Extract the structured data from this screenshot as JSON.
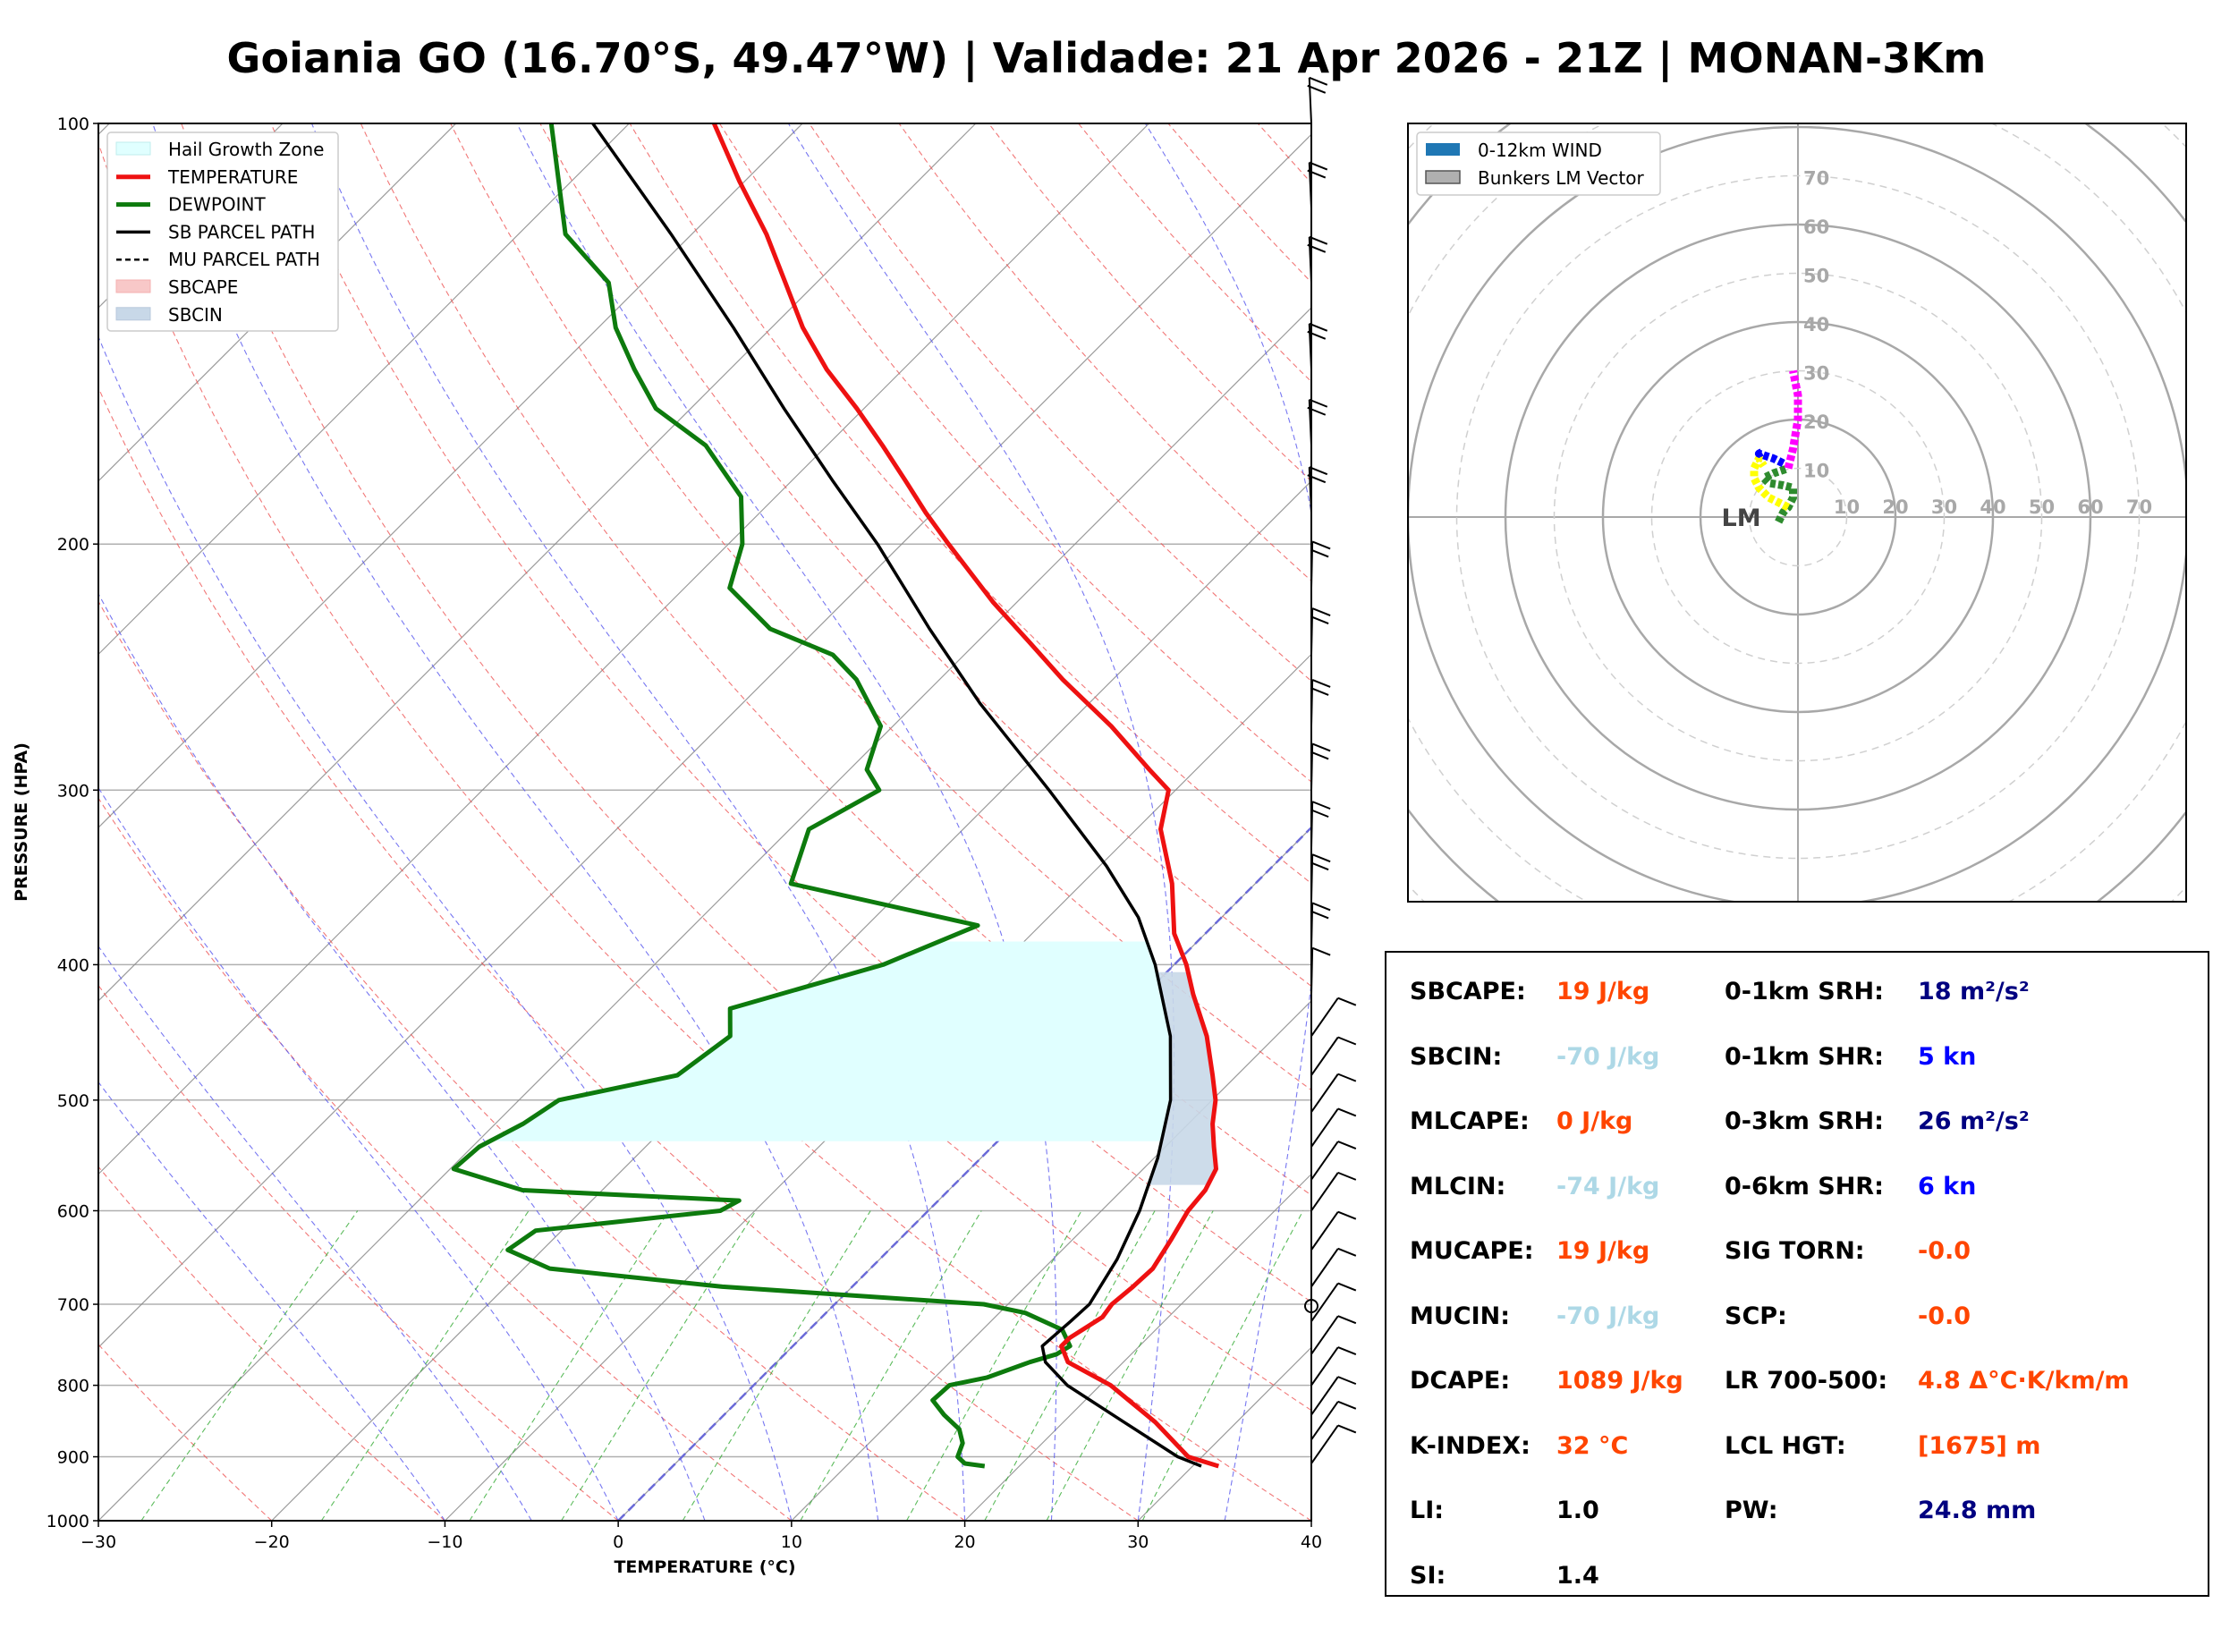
{
  "title": "Goiania GO (16.70°S, 49.47°W) | Validade: 21 Apr 2026 - 21Z | MONAN-3Km",
  "colors": {
    "temperature": "#ee1111",
    "dewpoint": "#0d7a0d",
    "parcel": "#000000",
    "hail_zone": "#e0ffff",
    "sbcin": "#c8d8e8",
    "isotherm": "#8a8a8a",
    "dry_adiabat": "#ee5555",
    "moist_adiabat": "#5555ee",
    "mixing_ratio": "#33aa33",
    "orange_value": "#ff4500",
    "lightblue_value": "#add8e6",
    "navy_value": "#000080",
    "blue_value": "#0000ff"
  },
  "chart_data": [
    {
      "type": "line",
      "chart": "skew-t",
      "xlabel": "TEMPERATURE (°C)",
      "ylabel": "PRESSURE (HPA)",
      "xlim": [
        -30,
        40
      ],
      "ylim": [
        1000,
        100
      ],
      "yscale": "log",
      "x_ticks": [
        "−30",
        "−20",
        "−10",
        "0",
        "10",
        "20",
        "30",
        "40"
      ],
      "y_ticks": [
        "100",
        "200",
        "300",
        "400",
        "500",
        "600",
        "700",
        "800",
        "900",
        "1000"
      ],
      "legend": {
        "position": "top-left",
        "entries": [
          "Hail Growth Zone",
          "TEMPERATURE",
          "DEWPOINT",
          "SB PARCEL PATH",
          "MU PARCEL PATH",
          "SBCAPE",
          "SBCIN"
        ]
      },
      "series": [
        {
          "name": "TEMPERATURE",
          "points": [
            [
              914,
              31.5
            ],
            [
              900,
              29.2
            ],
            [
              850,
              25.3
            ],
            [
              800,
              20.6
            ],
            [
              770,
              16.8
            ],
            [
              750,
              15.5
            ],
            [
              740,
              15.5
            ],
            [
              715,
              16.2
            ],
            [
              700,
              16.0
            ],
            [
              680,
              16.2
            ],
            [
              660,
              16.3
            ],
            [
              630,
              15.7
            ],
            [
              600,
              15.0
            ],
            [
              580,
              14.8
            ],
            [
              560,
              14.2
            ],
            [
              540,
              12.8
            ],
            [
              520,
              11.4
            ],
            [
              500,
              10.2
            ],
            [
              480,
              8.6
            ],
            [
              450,
              6.0
            ],
            [
              420,
              2.8
            ],
            [
              400,
              0.7
            ],
            [
              380,
              -1.8
            ],
            [
              350,
              -4.8
            ],
            [
              320,
              -8.6
            ],
            [
              300,
              -10.4
            ],
            [
              290,
              -12.7
            ],
            [
              270,
              -17.4
            ],
            [
              250,
              -22.9
            ],
            [
              235,
              -27.0
            ],
            [
              220,
              -31.4
            ],
            [
              200,
              -37.3
            ],
            [
              190,
              -40.4
            ],
            [
              180,
              -43.5
            ],
            [
              170,
              -46.8
            ],
            [
              160,
              -50.4
            ],
            [
              150,
              -54.4
            ],
            [
              140,
              -58.2
            ],
            [
              130,
              -61.8
            ],
            [
              120,
              -65.7
            ],
            [
              110,
              -70.3
            ],
            [
              100,
              -75.1
            ]
          ]
        },
        {
          "name": "DEWPOINT",
          "points": [
            [
              914,
              18.0
            ],
            [
              910,
              16.7
            ],
            [
              900,
              15.9
            ],
            [
              880,
              15.4
            ],
            [
              860,
              14.4
            ],
            [
              840,
              12.7
            ],
            [
              820,
              11.2
            ],
            [
              800,
              11.3
            ],
            [
              790,
              13.0
            ],
            [
              770,
              14.6
            ],
            [
              760,
              15.7
            ],
            [
              750,
              16.0
            ],
            [
              730,
              14.6
            ],
            [
              710,
              11.5
            ],
            [
              700,
              8.6
            ],
            [
              680,
              -7.5
            ],
            [
              660,
              -18.5
            ],
            [
              640,
              -22.0
            ],
            [
              620,
              -21.5
            ],
            [
              600,
              -12.0
            ],
            [
              590,
              -11.5
            ],
            [
              580,
              -24.6
            ],
            [
              560,
              -29.8
            ],
            [
              540,
              -29.6
            ],
            [
              520,
              -28.4
            ],
            [
              500,
              -27.7
            ],
            [
              480,
              -22.3
            ],
            [
              450,
              -21.5
            ],
            [
              430,
              -23.1
            ],
            [
              400,
              -16.8
            ],
            [
              375,
              -13.6
            ],
            [
              350,
              -26.8
            ],
            [
              320,
              -28.9
            ],
            [
              300,
              -27.1
            ],
            [
              290,
              -29.0
            ],
            [
              270,
              -30.7
            ],
            [
              250,
              -34.8
            ],
            [
              240,
              -37.6
            ],
            [
              230,
              -42.7
            ],
            [
              215,
              -47.4
            ],
            [
              200,
              -49.2
            ],
            [
              185,
              -52.0
            ],
            [
              170,
              -57.0
            ],
            [
              160,
              -62.0
            ],
            [
              150,
              -65.5
            ],
            [
              140,
              -69.0
            ],
            [
              130,
              -72.0
            ],
            [
              120,
              -77.3
            ],
            [
              100,
              -84.5
            ]
          ]
        },
        {
          "name": "SB PARCEL PATH",
          "points": [
            [
              914,
              30.5
            ],
            [
              900,
              28.6
            ],
            [
              850,
              23.5
            ],
            [
              800,
              18.1
            ],
            [
              770,
              15.5
            ],
            [
              750,
              14.4
            ],
            [
              720,
              14.6
            ],
            [
              700,
              14.7
            ],
            [
              650,
              13.7
            ],
            [
              600,
              12.2
            ],
            [
              550,
              10.2
            ],
            [
              500,
              7.6
            ],
            [
              450,
              3.9
            ],
            [
              400,
              -1.1
            ],
            [
              370,
              -4.8
            ],
            [
              340,
              -9.6
            ],
            [
              300,
              -17.3
            ],
            [
              260,
              -26.3
            ],
            [
              230,
              -33.5
            ],
            [
              200,
              -41.4
            ],
            [
              180,
              -47.7
            ],
            [
              160,
              -54.6
            ],
            [
              140,
              -62.2
            ],
            [
              120,
              -71.2
            ],
            [
              100,
              -82.1
            ]
          ]
        }
      ],
      "hail_growth_zone": {
        "top_hpa": 385,
        "bottom_hpa": 535
      },
      "sbcin_region": {
        "top_hpa": 405,
        "bottom_hpa": 575
      },
      "freezing_level_marker_hpa": 702,
      "wind_barbs": true
    },
    {
      "type": "line",
      "chart": "hodograph",
      "legend": {
        "position": "top-left",
        "entries": [
          "0-12km WIND",
          "Bunkers LM Vector"
        ]
      },
      "ring_labels": [
        "10",
        "20",
        "30",
        "40",
        "50",
        "60",
        "70"
      ],
      "axis_labels_x": [
        "10",
        "20",
        "30",
        "40",
        "50",
        "60",
        "70"
      ],
      "storm_motion_label": "LM",
      "segments": [
        {
          "color": "#2e8b2e",
          "points": [
            [
              -4,
              -1
            ],
            [
              -3,
              1
            ],
            [
              -2,
              2
            ],
            [
              -1,
              4
            ],
            [
              -1,
              6
            ],
            [
              -3,
              6.5
            ],
            [
              -6,
              7
            ],
            [
              -7,
              8
            ],
            [
              -5,
              9
            ],
            [
              -2,
              10
            ]
          ]
        },
        {
          "color": "#ffff00",
          "points": [
            [
              -2,
              2
            ],
            [
              -4,
              3
            ],
            [
              -6,
              4
            ],
            [
              -8,
              6
            ],
            [
              -9,
              8
            ],
            [
              -9,
              10
            ],
            [
              -8,
              12
            ],
            [
              -7,
              10.5
            ]
          ]
        },
        {
          "color": "#0000ff",
          "points": [
            [
              -3,
              11
            ],
            [
              -5,
              12
            ],
            [
              -8,
              13
            ],
            [
              -7,
              13.5
            ]
          ]
        },
        {
          "color": "#ff00ff",
          "points": [
            [
              -2,
              10
            ],
            [
              -1,
              14
            ],
            [
              0,
              20
            ],
            [
              0,
              25
            ],
            [
              -1,
              30
            ]
          ]
        }
      ],
      "lm_vector": [
        -12,
        0
      ]
    }
  ],
  "params": {
    "left": [
      {
        "label": "SBCAPE:",
        "value": "19 J/kg",
        "color": "#ff4500"
      },
      {
        "label": "SBCIN:",
        "value": "-70 J/kg",
        "color": "#add8e6"
      },
      {
        "label": "MLCAPE:",
        "value": "0 J/kg",
        "color": "#ff4500"
      },
      {
        "label": "MLCIN:",
        "value": "-74 J/kg",
        "color": "#add8e6"
      },
      {
        "label": "MUCAPE:",
        "value": "19 J/kg",
        "color": "#ff4500"
      },
      {
        "label": "MUCIN:",
        "value": "-70 J/kg",
        "color": "#add8e6"
      },
      {
        "label": "DCAPE:",
        "value": "1089 J/kg",
        "color": "#ff4500"
      },
      {
        "label": "K-INDEX:",
        "value": "32 °C",
        "color": "#ff4500"
      },
      {
        "label": "LI:",
        "value": "1.0",
        "color": "#000000"
      },
      {
        "label": "SI:",
        "value": "1.4",
        "color": "#000000"
      }
    ],
    "right": [
      {
        "label": "0-1km SRH:",
        "value": "18 m²/s²",
        "color": "#000080"
      },
      {
        "label": "0-1km SHR:",
        "value": "5 kn",
        "color": "#0000ff"
      },
      {
        "label": "0-3km SRH:",
        "value": "26 m²/s²",
        "color": "#000080"
      },
      {
        "label": "0-6km SHR:",
        "value": "6 kn",
        "color": "#0000ff"
      },
      {
        "label": "SIG TORN:",
        "value": "-0.0",
        "color": "#ff4500"
      },
      {
        "label": "SCP:",
        "value": "-0.0",
        "color": "#ff4500"
      },
      {
        "label": "LR 700-500:",
        "value": "4.8 Δ°C·K/km/m",
        "color": "#ff4500"
      },
      {
        "label": "LCL HGT:",
        "value": "[1675] m",
        "color": "#ff4500"
      },
      {
        "label": "PW:",
        "value": "24.8 mm",
        "color": "#000080"
      }
    ]
  }
}
